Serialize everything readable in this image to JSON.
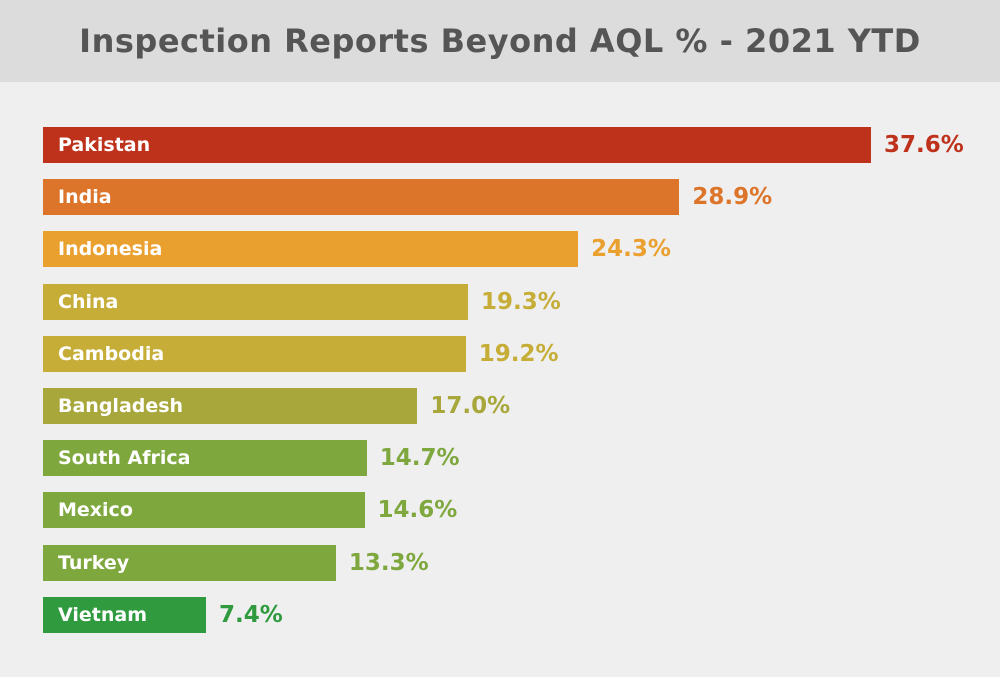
{
  "title": "Inspection Reports Beyond AQL % - 2021 YTD",
  "chart_data": {
    "type": "bar",
    "orientation": "horizontal",
    "title": "Inspection Reports Beyond AQL % - 2021 YTD",
    "xlabel": "",
    "ylabel": "",
    "xlim": [
      0,
      37.6
    ],
    "grid": false,
    "value_suffix": "%",
    "categories": [
      "Pakistan",
      "India",
      "Indonesia",
      "China",
      "Cambodia",
      "Bangladesh",
      "South Africa",
      "Mexico",
      "Turkey",
      "Vietnam"
    ],
    "values": [
      37.6,
      28.9,
      24.3,
      19.3,
      19.2,
      17.0,
      14.7,
      14.6,
      13.3,
      7.4
    ],
    "value_labels": [
      "37.6%",
      "28.9%",
      "24.3%",
      "19.3%",
      "19.2%",
      "17.0%",
      "14.7%",
      "14.6%",
      "13.3%",
      "7.4%"
    ],
    "colors": [
      "#be311b",
      "#dc7429",
      "#eaa02f",
      "#c6ad37",
      "#c6ad37",
      "#a8a73b",
      "#7ea73d",
      "#7ea73d",
      "#7ea73d",
      "#2f9a3e"
    ]
  }
}
